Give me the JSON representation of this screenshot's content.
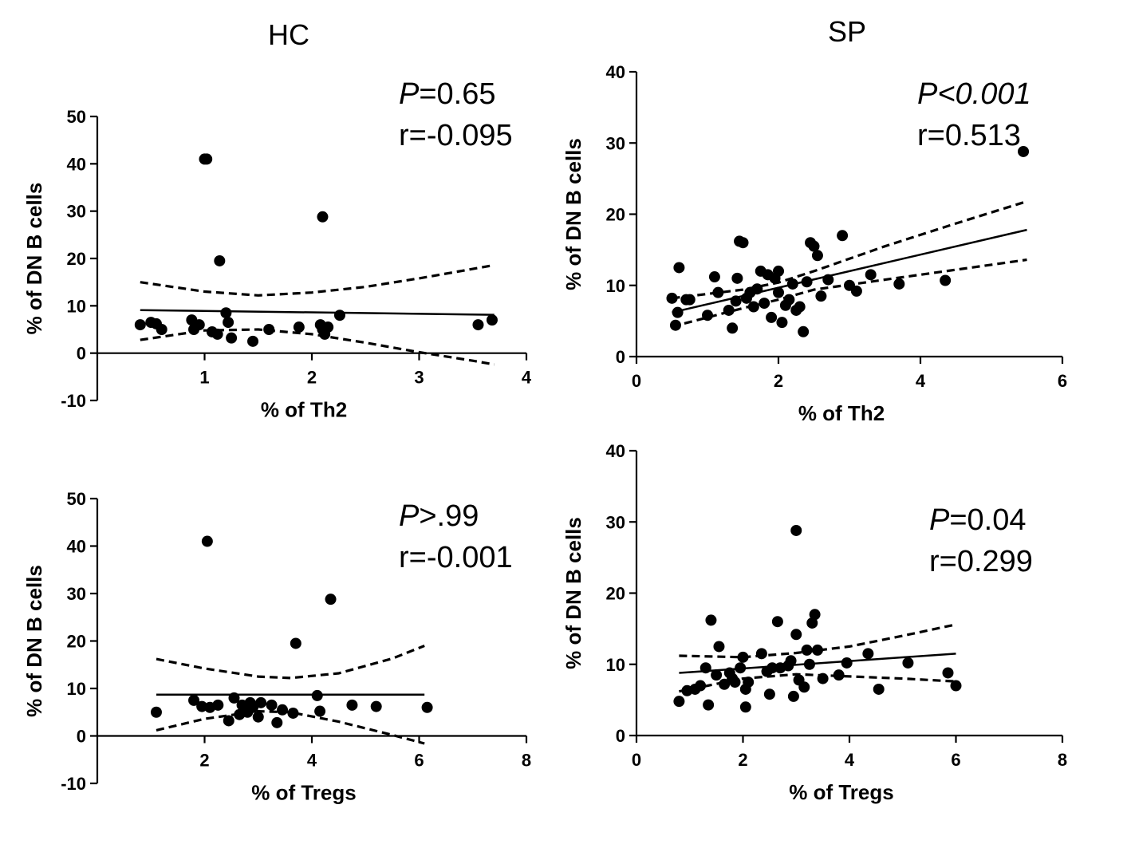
{
  "chart_data": [
    {
      "type": "scatter",
      "group": "HC",
      "title": "HC",
      "xlabel": "% of Th2",
      "ylabel": "% of DN B cells",
      "xlim": [
        0,
        4
      ],
      "ylim": [
        -10,
        50
      ],
      "xticks": [
        1,
        2,
        3,
        4
      ],
      "yticks": [
        -10,
        0,
        10,
        20,
        30,
        40,
        50
      ],
      "p_label": "P",
      "p_value": "=0.65",
      "r_text": "r=-0.095",
      "p_italic_all": false,
      "fit": {
        "x": [
          0.4,
          3.7
        ],
        "y": [
          9.1,
          8.1
        ]
      },
      "ci_upper": {
        "x": [
          0.4,
          1.0,
          1.5,
          2.0,
          2.5,
          3.0,
          3.5,
          3.7
        ],
        "y": [
          15.0,
          13.0,
          12.2,
          12.8,
          14.0,
          15.8,
          17.8,
          18.6
        ]
      },
      "ci_lower": {
        "x": [
          0.4,
          1.0,
          1.5,
          2.0,
          2.5,
          3.0,
          3.5,
          3.7
        ],
        "y": [
          2.8,
          4.8,
          5.0,
          4.0,
          2.2,
          0.2,
          -1.6,
          -2.4
        ]
      },
      "x": [
        0.4,
        0.5,
        0.55,
        0.6,
        0.88,
        0.9,
        0.95,
        1.0,
        1.07,
        1.12,
        1.2,
        1.22,
        1.25,
        1.45,
        1.6,
        1.88,
        2.08,
        2.1,
        2.12,
        2.15,
        2.26,
        3.55,
        3.68,
        1.02,
        1.14,
        2.1
      ],
      "y": [
        6.0,
        6.5,
        6.2,
        5.0,
        7.0,
        5.0,
        6.0,
        41.0,
        4.5,
        4.0,
        8.5,
        6.5,
        3.2,
        2.5,
        5.0,
        5.5,
        6.0,
        5.0,
        4.0,
        5.5,
        8.0,
        6.0,
        7.0,
        41.0,
        19.5,
        28.8
      ]
    },
    {
      "type": "scatter",
      "group": "SP",
      "title": "SP",
      "xlabel": "% of Th2",
      "ylabel": "% of DN B cells",
      "xlim": [
        0,
        6
      ],
      "ylim": [
        0,
        40
      ],
      "xticks": [
        0,
        2,
        4,
        6
      ],
      "yticks": [
        0,
        10,
        20,
        30,
        40
      ],
      "p_label": "P",
      "p_value": "<0.001",
      "r_text": "r=0.513",
      "p_italic_all": true,
      "fit": {
        "x": [
          0.5,
          5.5
        ],
        "y": [
          6.2,
          17.8
        ]
      },
      "ci_upper": {
        "x": [
          0.5,
          1.5,
          2.0,
          2.5,
          3.5,
          4.5,
          5.5
        ],
        "y": [
          8.2,
          9.4,
          10.4,
          12.0,
          15.5,
          18.7,
          21.8
        ]
      },
      "ci_lower": {
        "x": [
          0.5,
          1.5,
          2.0,
          2.5,
          3.5,
          4.5,
          5.5
        ],
        "y": [
          4.2,
          6.8,
          8.0,
          9.4,
          10.8,
          12.2,
          13.6
        ]
      },
      "x": [
        0.5,
        0.55,
        0.58,
        0.6,
        0.7,
        0.75,
        1.0,
        1.1,
        1.15,
        1.3,
        1.35,
        1.4,
        1.42,
        1.45,
        1.5,
        1.55,
        1.6,
        1.65,
        1.7,
        1.75,
        1.8,
        1.85,
        1.9,
        1.95,
        2.0,
        2.0,
        2.05,
        2.1,
        2.15,
        2.2,
        2.25,
        2.3,
        2.35,
        2.4,
        2.45,
        2.5,
        2.55,
        2.6,
        2.7,
        2.9,
        3.0,
        3.1,
        3.3,
        3.7,
        4.35,
        5.45
      ],
      "y": [
        8.2,
        4.4,
        6.2,
        12.5,
        8.0,
        8.0,
        5.8,
        11.2,
        9.0,
        6.5,
        4.0,
        7.8,
        11.0,
        16.2,
        16.0,
        8.2,
        9.0,
        7.0,
        9.5,
        12.0,
        7.5,
        11.5,
        5.5,
        11.0,
        12.0,
        9.0,
        4.8,
        7.2,
        8.0,
        10.2,
        6.5,
        7.0,
        3.5,
        10.5,
        16.0,
        15.5,
        14.2,
        8.5,
        10.8,
        17.0,
        10.0,
        9.2,
        11.5,
        10.2,
        10.7,
        28.8
      ]
    },
    {
      "type": "scatter",
      "group": "HC",
      "title": "",
      "xlabel": "% of Tregs",
      "ylabel": "% of DN B cells",
      "xlim": [
        0,
        8
      ],
      "ylim": [
        -10,
        50
      ],
      "xticks": [
        2,
        4,
        6,
        8
      ],
      "yticks": [
        -10,
        0,
        10,
        20,
        30,
        40,
        50
      ],
      "p_label": "P",
      "p_value": ">.99",
      "r_text": "r=-0.001",
      "p_italic_all": false,
      "fit": {
        "x": [
          1.1,
          6.1
        ],
        "y": [
          8.7,
          8.7
        ]
      },
      "ci_upper": {
        "x": [
          1.1,
          2.0,
          3.0,
          3.6,
          4.5,
          5.5,
          6.1
        ],
        "y": [
          16.2,
          14.2,
          12.5,
          12.2,
          13.2,
          16.3,
          19.0
        ]
      },
      "ci_lower": {
        "x": [
          1.1,
          2.0,
          3.0,
          3.6,
          4.5,
          5.5,
          6.1
        ],
        "y": [
          1.2,
          3.6,
          5.2,
          5.0,
          3.0,
          0.2,
          -1.6
        ]
      },
      "x": [
        1.1,
        1.8,
        1.95,
        2.05,
        2.1,
        2.25,
        2.45,
        2.55,
        2.65,
        2.7,
        2.8,
        2.85,
        2.9,
        3.0,
        3.05,
        3.25,
        3.35,
        3.45,
        3.65,
        3.7,
        4.1,
        4.15,
        4.35,
        4.75,
        5.2,
        6.15
      ],
      "y": [
        5.0,
        7.5,
        6.2,
        41.0,
        6.0,
        6.5,
        3.2,
        8.0,
        4.5,
        6.5,
        5.0,
        7.0,
        6.0,
        4.0,
        7.0,
        6.5,
        2.8,
        5.5,
        4.8,
        19.5,
        8.5,
        5.2,
        28.8,
        6.5,
        6.2,
        6.0
      ]
    },
    {
      "type": "scatter",
      "group": "SP",
      "title": "",
      "xlabel": "% of Tregs",
      "ylabel": "% of DN B cells",
      "xlim": [
        0,
        8
      ],
      "ylim": [
        0,
        40
      ],
      "xticks": [
        0,
        2,
        4,
        6,
        8
      ],
      "yticks": [
        0,
        10,
        20,
        30,
        40
      ],
      "p_label": "P",
      "p_value": "=0.04",
      "r_text": "r=0.299",
      "p_italic_all": false,
      "fit": {
        "x": [
          0.8,
          6.0
        ],
        "y": [
          8.8,
          11.5
        ]
      },
      "ci_upper": {
        "x": [
          0.8,
          2.0,
          3.0,
          4.0,
          5.0,
          6.0
        ],
        "y": [
          11.2,
          11.0,
          11.6,
          12.5,
          14.0,
          15.6
        ]
      },
      "ci_lower": {
        "x": [
          0.8,
          2.0,
          3.0,
          4.0,
          5.0,
          6.0
        ],
        "y": [
          6.2,
          8.0,
          8.6,
          8.3,
          8.0,
          7.6
        ]
      },
      "x": [
        0.8,
        0.95,
        1.1,
        1.2,
        1.3,
        1.35,
        1.4,
        1.5,
        1.55,
        1.65,
        1.75,
        1.8,
        1.85,
        1.95,
        2.0,
        2.05,
        2.05,
        2.1,
        2.35,
        2.45,
        2.5,
        2.55,
        2.65,
        2.7,
        2.85,
        2.9,
        2.95,
        3.0,
        3.0,
        3.05,
        3.15,
        3.2,
        3.25,
        3.3,
        3.35,
        3.4,
        3.5,
        3.8,
        3.95,
        4.35,
        4.55,
        5.1,
        5.85,
        6.0
      ],
      "y": [
        4.8,
        6.3,
        6.5,
        7.0,
        9.5,
        4.3,
        16.2,
        8.5,
        12.5,
        7.2,
        8.8,
        8.0,
        7.5,
        9.5,
        11.0,
        4.0,
        6.5,
        7.5,
        11.5,
        9.0,
        5.8,
        9.5,
        16.0,
        9.5,
        9.8,
        10.5,
        5.5,
        14.2,
        28.8,
        7.8,
        6.8,
        12.0,
        10.0,
        15.8,
        17.0,
        12.0,
        8.0,
        8.5,
        10.2,
        11.5,
        6.5,
        10.2,
        8.8,
        7.0
      ]
    }
  ]
}
